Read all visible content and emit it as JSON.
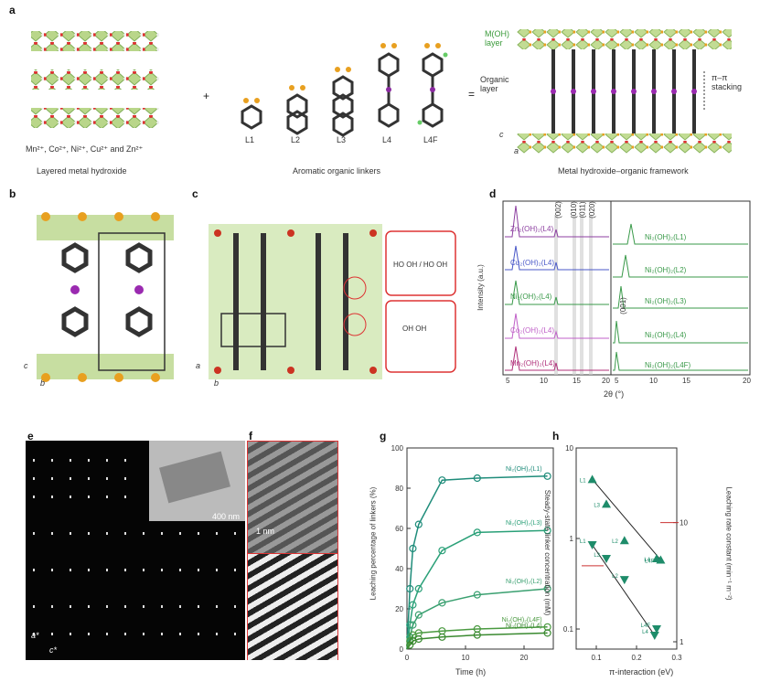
{
  "panel_a": {
    "label": "a",
    "ions": "Mn²⁺, Co²⁺, Ni²⁺, Cu²⁺ and Zn²⁺",
    "caption_left": "Layered metal hydroxide",
    "caption_mid": "Aromatic organic linkers",
    "caption_right": "Metal hydroxide–organic framework",
    "plus": "+",
    "arrow": "=",
    "linkers": [
      "L1",
      "L2",
      "L3",
      "L4",
      "L4F"
    ],
    "moh_layer": "M(OH) layer",
    "organic_layer": "Organic layer",
    "stacking": "π–π stacking",
    "axis_c": "c",
    "axis_a": "a"
  },
  "panel_b": {
    "label": "b",
    "axis_c": "c",
    "axis_b": "b"
  },
  "panel_c": {
    "label": "c",
    "axis_a": "a",
    "axis_b": "b",
    "inset1": "HO OH / HO OH",
    "inset2": "OH OH"
  },
  "panel_d": {
    "label": "d",
    "ylabel": "Intensity (a.u.)",
    "xlabel": "2θ (°)",
    "hkl": [
      "(002)",
      "(010)",
      "(011)",
      "(020)"
    ],
    "left_series": [
      "Zn₂(OH)₂(L4)",
      "Cu₂(OH)₂(L4)",
      "Ni₂(OH)₂(L4)",
      "Co₂(OH)₂(L4)",
      "Mn₂(OH)₂(L4)"
    ],
    "right_series": [
      "Ni₂(OH)₂(L1)",
      "Ni₂(OH)₂(L2)",
      "Ni₂(OH)₂(L3)",
      "Ni₂(OH)₂(L4)",
      "Ni₂(OH)₂(L4F)"
    ],
    "peak001": "(001)",
    "xticks_left": [
      "5",
      "10",
      "15",
      "20"
    ],
    "xticks_right": [
      "5",
      "10",
      "15",
      "20"
    ],
    "colors": {
      "zn": "#8c3fa0",
      "cu": "#4a58c8",
      "ni": "#3a9a4a",
      "co": "#c060c8",
      "mn": "#b0307a"
    }
  },
  "panel_e": {
    "label": "e",
    "scale": "400 nm",
    "axis_a": "a*",
    "axis_c": "c*"
  },
  "panel_f": {
    "label": "f",
    "scale": "1 nm"
  },
  "panel_g": {
    "label": "g",
    "ylabel": "Leaching percentage of linkers (%)",
    "xlabel": "Time (h)",
    "yticks": [
      "0",
      "20",
      "40",
      "60",
      "80",
      "100"
    ],
    "xticks": [
      "0",
      "10",
      "20"
    ]
  },
  "panel_h": {
    "label": "h",
    "ylabel_left": "Steady-state linker concentration (mM)",
    "ylabel_right": "Leaching rate constant (min⁻¹ m⁻²)",
    "xlabel": "π-interaction (eV)",
    "yticks_left": [
      "0.1",
      "1",
      "10"
    ],
    "yticks_right": [
      "1",
      "10"
    ],
    "xticks": [
      "0.1",
      "0.2",
      "0.3"
    ]
  },
  "chart_data": [
    {
      "type": "line",
      "xlabel": "Time (h)",
      "ylabel": "Leaching percentage of linkers (%)",
      "xlim": [
        0,
        25
      ],
      "ylim": [
        0,
        100
      ],
      "series": [
        {
          "name": "Ni₂(OH)₂(L1)",
          "x": [
            0,
            0.5,
            1,
            2,
            6,
            12,
            24
          ],
          "y": [
            0,
            30,
            50,
            62,
            84,
            85,
            86
          ]
        },
        {
          "name": "Ni₂(OH)₂(L3)",
          "x": [
            0,
            0.5,
            1,
            2,
            6,
            12,
            24
          ],
          "y": [
            0,
            12,
            22,
            30,
            49,
            58,
            59
          ]
        },
        {
          "name": "Ni₂(OH)₂(L2)",
          "x": [
            0,
            0.5,
            1,
            2,
            6,
            12,
            24
          ],
          "y": [
            0,
            6,
            12,
            17,
            23,
            27,
            30
          ]
        },
        {
          "name": "Ni₂(OH)₂(L4F)",
          "x": [
            0,
            0.5,
            1,
            2,
            6,
            12,
            24
          ],
          "y": [
            0,
            4,
            7,
            8,
            9,
            10,
            11
          ]
        },
        {
          "name": "Ni₂(OH)₂(L4)",
          "x": [
            0,
            0.5,
            1,
            2,
            6,
            12,
            24
          ],
          "y": [
            0,
            2,
            4,
            5,
            6,
            7,
            8
          ]
        }
      ]
    },
    {
      "type": "scatter",
      "xlabel": "π-interaction (eV)",
      "ylabel": "Steady-state linker concentration (mM)",
      "y2label": "Leaching rate constant (min⁻¹ m⁻²)",
      "xlim": [
        0.05,
        0.3
      ],
      "ylim": [
        0.06,
        10
      ],
      "series": [
        {
          "name": "rate constant",
          "points": [
            {
              "label": "L1",
              "x": 0.09,
              "y": 4.5
            },
            {
              "label": "L3",
              "x": 0.125,
              "y": 2.4
            },
            {
              "label": "L2",
              "x": 0.17,
              "y": 0.95
            },
            {
              "label": "L4",
              "x": 0.25,
              "y": 0.6
            },
            {
              "label": "L4F",
              "x": 0.26,
              "y": 0.58
            }
          ]
        },
        {
          "name": "steady-state concentration",
          "points": [
            {
              "label": "L1",
              "x": 0.09,
              "y": 0.85
            },
            {
              "label": "L3",
              "x": 0.125,
              "y": 0.6
            },
            {
              "label": "L2",
              "x": 0.17,
              "y": 0.35
            },
            {
              "label": "L4F",
              "x": 0.25,
              "y": 0.1
            },
            {
              "label": "L4",
              "x": 0.245,
              "y": 0.085
            }
          ]
        }
      ]
    }
  ]
}
